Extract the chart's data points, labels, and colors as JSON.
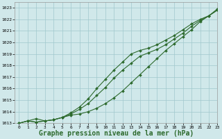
{
  "bg_color": "#d0e8ea",
  "grid_color": "#a0c8cc",
  "line_color": "#2d6a2d",
  "marker_color": "#2d6a2d",
  "xlabel": "Graphe pression niveau de la mer (hPa)",
  "xlabel_fontsize": 7,
  "xlim": [
    -0.5,
    23
  ],
  "ylim": [
    1013,
    1023.5
  ],
  "xticks": [
    0,
    1,
    2,
    3,
    4,
    5,
    6,
    7,
    8,
    9,
    10,
    11,
    12,
    13,
    14,
    15,
    16,
    17,
    18,
    19,
    20,
    21,
    22,
    23
  ],
  "yticks": [
    1013,
    1014,
    1015,
    1016,
    1017,
    1018,
    1019,
    1020,
    1021,
    1022,
    1023
  ],
  "line1_x": [
    0,
    1,
    2,
    3,
    4,
    5,
    6,
    7,
    8,
    9,
    10,
    11,
    12,
    13,
    14,
    15,
    16,
    17,
    18,
    19,
    20,
    21,
    22,
    23
  ],
  "line1_y": [
    1013.0,
    1013.2,
    1013.4,
    1013.2,
    1013.3,
    1013.5,
    1013.7,
    1013.8,
    1014.0,
    1014.3,
    1014.7,
    1015.2,
    1015.8,
    1016.5,
    1017.2,
    1017.9,
    1018.6,
    1019.3,
    1019.9,
    1020.5,
    1021.1,
    1021.8,
    1022.3,
    1022.9
  ],
  "line2_x": [
    0,
    1,
    2,
    3,
    4,
    5,
    6,
    7,
    8,
    9,
    10,
    11,
    12,
    13,
    14,
    15,
    16,
    17,
    18,
    19,
    20,
    21,
    22,
    23
  ],
  "line2_y": [
    1013.0,
    1013.2,
    1013.1,
    1013.2,
    1013.3,
    1013.5,
    1013.8,
    1014.2,
    1014.7,
    1015.4,
    1016.1,
    1016.9,
    1017.6,
    1018.2,
    1018.8,
    1019.1,
    1019.4,
    1019.8,
    1020.3,
    1020.8,
    1021.4,
    1021.9,
    1022.3,
    1022.8
  ],
  "line3_x": [
    0,
    1,
    2,
    3,
    4,
    5,
    6,
    7,
    8,
    9,
    10,
    11,
    12,
    13,
    14,
    15,
    16,
    17,
    18,
    19,
    20,
    21,
    22,
    23
  ],
  "line3_y": [
    1013.0,
    1013.2,
    1013.1,
    1013.2,
    1013.3,
    1013.5,
    1013.9,
    1014.4,
    1015.1,
    1016.0,
    1016.8,
    1017.6,
    1018.3,
    1019.0,
    1019.3,
    1019.5,
    1019.8,
    1020.2,
    1020.6,
    1021.1,
    1021.6,
    1022.0,
    1022.3,
    1022.8
  ]
}
